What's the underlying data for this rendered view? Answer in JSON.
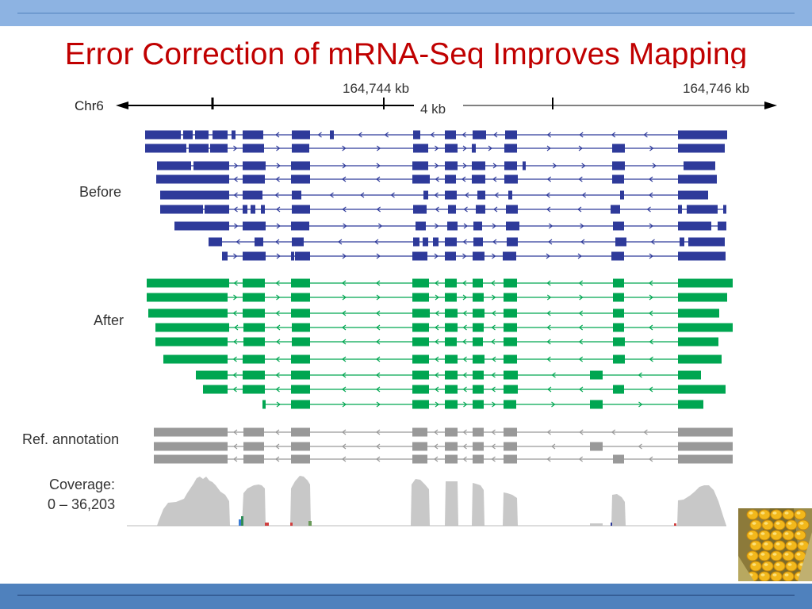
{
  "slide": {
    "title": "Error Correction of mRNA-Seq Improves Mapping"
  },
  "figure": {
    "chromosome": "Chr6",
    "coord_left": "164,744 kb",
    "coord_right": "164,746 kb",
    "scale": "4 kb",
    "label_before": "Before",
    "label_after": "After",
    "label_ref": "Ref. annotation",
    "label_coverage": "Coverage:",
    "coverage_range": "0 – 36,203"
  },
  "colors": {
    "before": "#2e3a9a",
    "after": "#00a651",
    "reference": "#999999",
    "coverage": "#c8c8c8",
    "title": "#c00000"
  },
  "picture": {
    "corner_image": "corn-cob-photo"
  }
}
